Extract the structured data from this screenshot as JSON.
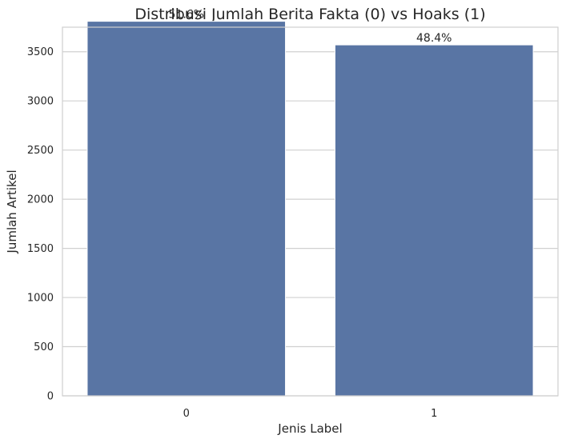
{
  "chart_data": {
    "type": "bar",
    "title": "Distribusi Jumlah Berita Fakta (0) vs Hoaks (1)",
    "xlabel": "Jenis Label",
    "ylabel": "Jumlah Artikel",
    "categories": [
      "0",
      "1"
    ],
    "values": [
      3810,
      3570
    ],
    "data_labels": [
      "51.6%",
      "48.4%"
    ],
    "ylim": [
      0,
      3750
    ],
    "yticks": [
      0,
      500,
      1000,
      1500,
      2000,
      2500,
      3000,
      3500
    ],
    "grid": true,
    "legend": "none",
    "bar_color": "#5975a4"
  }
}
